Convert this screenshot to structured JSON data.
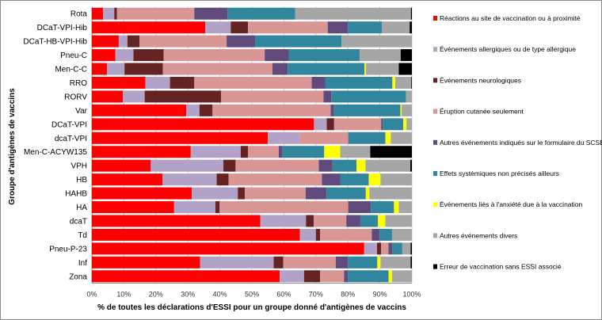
{
  "chart_data": {
    "type": "bar",
    "orientation": "horizontal",
    "stacked": true,
    "normalized_percent": true,
    "title": "",
    "xlabel": "% de toutes les déclarations d'ESSI pour un groupe donné d'antigènes de vaccins",
    "ylabel": "Groupe d'antigènes de vaccins",
    "xlim": [
      0,
      100
    ],
    "x_ticks": [
      "0%",
      "10%",
      "20%",
      "30%",
      "40%",
      "50%",
      "60%",
      "70%",
      "80%",
      "90%",
      "100%"
    ],
    "grid": "vertical",
    "legend_position": "right",
    "categories": [
      "Rota",
      "DCaT-VPI-Hib",
      "DCaT-HB-VPI-Hib",
      "Pneu-C",
      "Men-C-C",
      "RRO",
      "RORV",
      "Var",
      "DCaT-VPI",
      "dcaT-VPI",
      "Men-C-ACYW135",
      "VPH",
      "HB",
      "HAHB",
      "HA",
      "dcaT",
      "Td",
      "Pneu-P-23",
      "Inf",
      "Zona"
    ],
    "series": [
      {
        "name": "Réactions au site de vaccination ou à proximité",
        "color": "#FF0000",
        "values": [
          3.5,
          35.4,
          8.4,
          7.3,
          4.7,
          16.7,
          9.7,
          29.5,
          69.4,
          55.0,
          30.9,
          18.4,
          22.1,
          31.2,
          25.7,
          52.6,
          65.0,
          85.1,
          33.8,
          58.7
        ]
      },
      {
        "name": "Événements allergiques ou de type allergique",
        "color": "#B3A2C7",
        "values": [
          3.5,
          8.0,
          2.7,
          5.7,
          5.5,
          7.7,
          6.8,
          4.1,
          4.0,
          10.0,
          15.6,
          22.7,
          16.9,
          14.4,
          12.9,
          14.3,
          5.0,
          4.0,
          23.0,
          7.6
        ]
      },
      {
        "name": "Événements neurologiques",
        "color": "#632423",
        "values": [
          0.8,
          5.4,
          3.8,
          9.4,
          12.0,
          7.6,
          23.9,
          4.1,
          2.3,
          0,
          2.3,
          3.8,
          3.7,
          2.2,
          1.3,
          2.4,
          1.3,
          1.3,
          3.0,
          5.0
        ]
      },
      {
        "name": "Éruption cutanée seulement",
        "color": "#D99694",
        "values": [
          24.2,
          24.9,
          27.2,
          31.6,
          34.2,
          36.7,
          32.0,
          36.9,
          14.7,
          15.1,
          9.6,
          26.0,
          29.2,
          19.0,
          40.2,
          10.2,
          16.2,
          2.3,
          16.4,
          7.5
        ]
      },
      {
        "name": "Autres événements indiqués sur le formulaire du SCSESSI",
        "color": "#604A7B",
        "values": [
          10.4,
          6.3,
          8.9,
          7.5,
          4.8,
          4.2,
          2.4,
          1.0,
          0.5,
          0,
          1.1,
          4.3,
          5.7,
          6.5,
          7.1,
          4.4,
          2.4,
          1.2,
          3.8,
          1.2
        ]
      },
      {
        "name": "Effets systémiques non précisés ailleurs",
        "color": "#31859C",
        "values": [
          21.1,
          10.6,
          27.0,
          22.2,
          24.0,
          21.0,
          23.4,
          20.8,
          6.4,
          11.6,
          13.1,
          7.5,
          8.9,
          12.3,
          7.2,
          5.5,
          3.9,
          3.1,
          9.2,
          12.7
        ]
      },
      {
        "name": "Événements liés à l'anxiété due à la vaccination",
        "color": "#FFFF00",
        "values": [
          0,
          0,
          0,
          0,
          0.4,
          0.9,
          0,
          0.4,
          1.0,
          1.7,
          5.0,
          2.8,
          3.7,
          1.1,
          1.5,
          2.3,
          0,
          0,
          1.0,
          1.1
        ]
      },
      {
        "name": "Autres événements divers",
        "color": "#A6A6A6",
        "values": [
          36.2,
          8.7,
          22.0,
          12.8,
          10.3,
          5.0,
          1.8,
          3.2,
          1.7,
          6.6,
          9.4,
          14.0,
          9.8,
          13.3,
          4.1,
          8.3,
          6.2,
          2.6,
          9.4,
          6.2
        ]
      },
      {
        "name": "Erreur de vaccination sans ESSI associé",
        "color": "#000000",
        "values": [
          0.3,
          0.7,
          0,
          3.5,
          4.1,
          0.2,
          0,
          0,
          0,
          0,
          13.0,
          0.5,
          0,
          0,
          0,
          0,
          0,
          0.4,
          0.4,
          0
        ]
      }
    ]
  }
}
